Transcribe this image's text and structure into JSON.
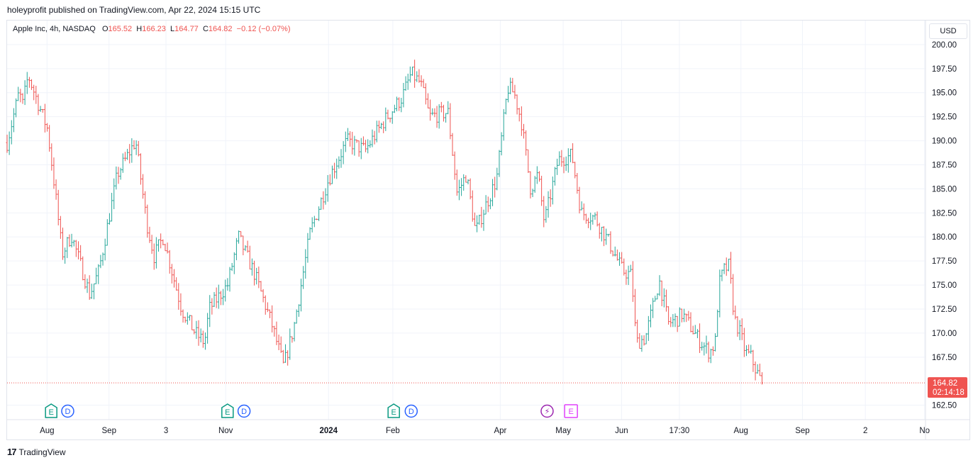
{
  "header": {
    "published": "holeyprofit published on TradingView.com, Apr 22, 2024 15:15 UTC"
  },
  "legend": {
    "symbol": "Apple Inc, 4h, NASDAQ",
    "o_label": "O",
    "o": "165.52",
    "h_label": "H",
    "h": "166.23",
    "l_label": "L",
    "l": "164.77",
    "c_label": "C",
    "c": "164.82",
    "change": "−0.12 (−0.07%)"
  },
  "currency": "USD",
  "footer": {
    "brand_mark": "17",
    "brand": "TradingView"
  },
  "colors": {
    "up": "#26a69a",
    "down": "#ef5350",
    "last_price": "#ef5350",
    "earnings": "#089981",
    "dividend": "#2962ff",
    "split": "#9c27b0"
  },
  "chart_data": {
    "type": "ohlc",
    "title": "Apple Inc, 4h, NASDAQ",
    "ylim": [
      161.0,
      202.5
    ],
    "y_ticks": [
      "200.00",
      "197.50",
      "195.00",
      "192.50",
      "190.00",
      "187.50",
      "185.00",
      "182.50",
      "180.00",
      "177.50",
      "175.00",
      "172.50",
      "170.00",
      "167.50",
      "162.50"
    ],
    "x_ticks": [
      {
        "label": "Aug",
        "t": 0.0435
      },
      {
        "label": "Sep",
        "t": 0.111
      },
      {
        "label": "3",
        "t": 0.173
      },
      {
        "label": "Nov",
        "t": 0.238
      },
      {
        "label": "2024",
        "t": 0.35
      },
      {
        "label": "Feb",
        "t": 0.42
      },
      {
        "label": "Apr",
        "t": 0.537
      },
      {
        "label": "May",
        "t": 0.6055
      },
      {
        "label": "Jun",
        "t": 0.669
      },
      {
        "label": "17:30",
        "t": 0.732
      },
      {
        "label": "Aug",
        "t": 0.799
      },
      {
        "label": "Sep",
        "t": 0.866
      },
      {
        "label": "2",
        "t": 0.9345
      },
      {
        "label": "No",
        "t": 0.999
      }
    ],
    "last_price": {
      "value": 164.82,
      "label": "164.82",
      "countdown": "02:14:18"
    },
    "markers": [
      {
        "type": "earnings",
        "label": "E",
        "t": 0.048
      },
      {
        "type": "dividend",
        "label": "D",
        "t": 0.066
      },
      {
        "type": "earnings",
        "label": "E",
        "t": 0.24
      },
      {
        "type": "dividend",
        "label": "D",
        "t": 0.258
      },
      {
        "type": "earnings",
        "label": "E",
        "t": 0.421
      },
      {
        "type": "dividend",
        "label": "D",
        "t": 0.44
      },
      {
        "type": "split",
        "label": "⚡",
        "t": 0.588
      },
      {
        "type": "upcoming-earnings",
        "label": "E",
        "t": 0.614
      }
    ],
    "keypoints": [
      [
        0.0,
        189.8
      ],
      [
        0.013,
        195.0
      ],
      [
        0.017,
        193.8
      ],
      [
        0.023,
        196.8
      ],
      [
        0.044,
        191.2
      ],
      [
        0.052,
        185.0
      ],
      [
        0.06,
        178.2
      ],
      [
        0.07,
        180.2
      ],
      [
        0.09,
        174.0
      ],
      [
        0.1,
        176.5
      ],
      [
        0.12,
        186.5
      ],
      [
        0.14,
        190.0
      ],
      [
        0.152,
        181.5
      ],
      [
        0.16,
        178.0
      ],
      [
        0.17,
        180.0
      ],
      [
        0.19,
        172.5
      ],
      [
        0.205,
        170.0
      ],
      [
        0.215,
        169.0
      ],
      [
        0.22,
        172.5
      ],
      [
        0.24,
        175.0
      ],
      [
        0.252,
        180.0
      ],
      [
        0.27,
        176.0
      ],
      [
        0.288,
        171.0
      ],
      [
        0.301,
        166.5
      ],
      [
        0.312,
        170.5
      ],
      [
        0.33,
        180.5
      ],
      [
        0.35,
        186.0
      ],
      [
        0.37,
        190.0
      ],
      [
        0.39,
        189.0
      ],
      [
        0.41,
        192.0
      ],
      [
        0.43,
        194.5
      ],
      [
        0.44,
        197.0
      ],
      [
        0.45,
        196.0
      ],
      [
        0.46,
        192.5
      ],
      [
        0.48,
        193.0
      ],
      [
        0.49,
        184.5
      ],
      [
        0.5,
        186.5
      ],
      [
        0.51,
        180.5
      ],
      [
        0.52,
        183.0
      ],
      [
        0.533,
        186.0
      ],
      [
        0.545,
        195.5
      ],
      [
        0.552,
        195.0
      ],
      [
        0.56,
        192.0
      ],
      [
        0.57,
        185.0
      ],
      [
        0.578,
        186.5
      ],
      [
        0.585,
        181.5
      ],
      [
        0.6,
        188.0
      ],
      [
        0.615,
        188.5
      ],
      [
        0.625,
        182.5
      ],
      [
        0.64,
        182.0
      ],
      [
        0.655,
        179.5
      ],
      [
        0.67,
        176.5
      ],
      [
        0.68,
        176.0
      ],
      [
        0.685,
        169.0
      ],
      [
        0.695,
        169.5
      ],
      [
        0.71,
        175.5
      ],
      [
        0.72,
        171.0
      ],
      [
        0.73,
        171.5
      ],
      [
        0.735,
        172.0
      ],
      [
        0.742,
        171.0
      ],
      [
        0.752,
        169.5
      ],
      [
        0.76,
        168.5
      ],
      [
        0.765,
        168.0
      ],
      [
        0.771,
        169.0
      ],
      [
        0.775,
        175.0
      ],
      [
        0.78,
        176.5
      ],
      [
        0.786,
        177.0
      ],
      [
        0.792,
        171.5
      ],
      [
        0.798,
        170.0
      ],
      [
        0.804,
        168.0
      ],
      [
        0.81,
        167.5
      ],
      [
        0.816,
        166.0
      ],
      [
        0.822,
        164.82
      ]
    ]
  }
}
